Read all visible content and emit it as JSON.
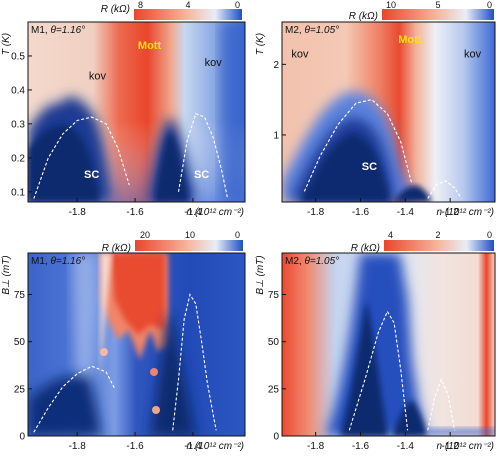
{
  "figure": {
    "panels": [
      {
        "id": "a",
        "sample": "M1",
        "theta_label": "θ=1.16°",
        "type": "heatmap",
        "colorbar_label": "R (kΩ)",
        "colorbar_ticks": [
          "8",
          "4",
          "0"
        ],
        "ylabel": "T (K)",
        "ytick_labels": [
          "0.1",
          "0.2",
          "0.3",
          "0.4",
          "0.5"
        ],
        "yticks": [
          0.1,
          0.2,
          0.3,
          0.4,
          0.5
        ],
        "ylim": [
          0.07,
          0.6
        ],
        "xlabel": "n (10¹² cm⁻²)",
        "xtick_labels": [
          "-1.8",
          "-1.6",
          "-1.4"
        ],
        "xticks": [
          -1.8,
          -1.6,
          -1.4
        ],
        "xlim": [
          -1.97,
          -1.22
        ],
        "annotations": [
          {
            "text": "kov",
            "x": -1.73,
            "y": 0.43,
            "color": "#111111"
          },
          {
            "text": "Mott",
            "x": -1.55,
            "y": 0.52,
            "color": "#ffe300"
          },
          {
            "text": "kov",
            "x": -1.33,
            "y": 0.47,
            "color": "#111111"
          },
          {
            "text": "SC",
            "x": -1.75,
            "y": 0.14,
            "color": "#ffffff"
          },
          {
            "text": "SC",
            "x": -1.37,
            "y": 0.14,
            "color": "#ffffff"
          }
        ]
      },
      {
        "id": "b",
        "sample": "M2",
        "theta_label": "θ=1.05°",
        "type": "heatmap",
        "colorbar_label": "R (kΩ)",
        "colorbar_ticks": [
          "10",
          "5",
          "0"
        ],
        "ylabel": "T (K)",
        "ytick_labels": [
          "1",
          "2"
        ],
        "yticks": [
          1,
          2
        ],
        "ylim": [
          0.05,
          2.6
        ],
        "xlabel": "n (10¹² cm⁻²)",
        "xtick_labels": [
          "-1.8",
          "-1.6",
          "-1.4",
          "-1.2"
        ],
        "xticks": [
          -1.8,
          -1.6,
          -1.4,
          -1.2
        ],
        "xlim": [
          -1.95,
          -1.0
        ],
        "annotations": [
          {
            "text": "kov",
            "x": -1.87,
            "y": 2.1,
            "color": "#111111"
          },
          {
            "text": "Mott",
            "x": -1.38,
            "y": 2.3,
            "color": "#ffe300"
          },
          {
            "text": "kov",
            "x": -1.1,
            "y": 2.1,
            "color": "#111111"
          },
          {
            "text": "SC",
            "x": -1.56,
            "y": 0.5,
            "color": "#ffffff"
          }
        ]
      },
      {
        "id": "c",
        "sample": "M1",
        "theta_label": "θ=1.16°",
        "type": "heatmap",
        "colorbar_label": "R (kΩ)",
        "colorbar_ticks": [
          "20",
          "10",
          "0"
        ],
        "ylabel": "B⊥ (mT)",
        "ytick_labels": [
          "0",
          "25",
          "50",
          "75"
        ],
        "yticks": [
          0,
          25,
          50,
          75
        ],
        "ylim": [
          0,
          97
        ],
        "xlabel": "n (10¹² cm⁻²)",
        "xtick_labels": [
          "-1.8",
          "-1.6",
          "-1.4"
        ],
        "xticks": [
          -1.8,
          -1.6,
          -1.4
        ],
        "xlim": [
          -1.97,
          -1.22
        ],
        "annotations": []
      },
      {
        "id": "d",
        "sample": "M2",
        "theta_label": "θ=1.05°",
        "type": "heatmap",
        "colorbar_label": "R (kΩ)",
        "colorbar_ticks": [
          "4",
          "2",
          "0"
        ],
        "ylabel": "B⊥ (mT)",
        "ytick_labels": [
          "0",
          "25",
          "50",
          "75"
        ],
        "yticks": [
          0,
          25,
          50,
          75
        ],
        "ylim": [
          0,
          97
        ],
        "xlabel": "n (10¹² cm⁻²)",
        "xtick_labels": [
          "-1.8",
          "-1.6",
          "-1.4",
          "-1.2"
        ],
        "xticks": [
          -1.8,
          -1.6,
          -1.4,
          -1.2
        ],
        "xlim": [
          -1.95,
          -1.0
        ],
        "annotations": []
      }
    ]
  },
  "chart_data": [
    {
      "type": "heatmap",
      "panel": "M1, θ=1.16°",
      "x_quantity": "n (10¹² cm⁻²)",
      "y_quantity": "T (K)",
      "z_quantity": "R (kΩ)",
      "x_range": [
        -1.97,
        -1.22
      ],
      "y_range": [
        0.07,
        0.6
      ],
      "z_range": [
        0,
        8
      ],
      "regions": [
        "kov",
        "Mott",
        "kov",
        "SC",
        "SC"
      ],
      "sc_dome_boundaries": [
        {
          "x": [
            -1.95,
            -1.9,
            -1.85,
            -1.8,
            -1.75,
            -1.7,
            -1.66,
            -1.62
          ],
          "y": [
            0.08,
            0.2,
            0.27,
            0.31,
            0.32,
            0.3,
            0.23,
            0.12
          ]
        },
        {
          "x": [
            -1.45,
            -1.42,
            -1.39,
            -1.36,
            -1.33,
            -1.3,
            -1.28
          ],
          "y": [
            0.1,
            0.25,
            0.33,
            0.32,
            0.26,
            0.16,
            0.08
          ]
        }
      ]
    },
    {
      "type": "heatmap",
      "panel": "M2, θ=1.05°",
      "x_quantity": "n (10¹² cm⁻²)",
      "y_quantity": "T (K)",
      "z_quantity": "R (kΩ)",
      "x_range": [
        -1.95,
        -1.0
      ],
      "y_range": [
        0.05,
        2.6
      ],
      "z_range": [
        0,
        10
      ],
      "regions": [
        "kov",
        "Mott",
        "kov",
        "SC"
      ],
      "sc_dome_boundaries": [
        {
          "x": [
            -1.85,
            -1.78,
            -1.7,
            -1.62,
            -1.55,
            -1.48,
            -1.42,
            -1.37
          ],
          "y": [
            0.2,
            0.7,
            1.15,
            1.45,
            1.5,
            1.3,
            0.9,
            0.3
          ]
        },
        {
          "x": [
            -1.3,
            -1.26,
            -1.22,
            -1.18,
            -1.15
          ],
          "y": [
            0.1,
            0.3,
            0.35,
            0.25,
            0.1
          ]
        }
      ]
    },
    {
      "type": "heatmap",
      "panel": "M1, θ=1.16°",
      "x_quantity": "n (10¹² cm⁻²)",
      "y_quantity": "B⊥ (mT)",
      "z_quantity": "R (kΩ)",
      "x_range": [
        -1.97,
        -1.22
      ],
      "y_range": [
        0,
        97
      ],
      "z_range": [
        0,
        20
      ],
      "sc_dome_boundaries": [
        {
          "x": [
            -1.95,
            -1.9,
            -1.85,
            -1.8,
            -1.75,
            -1.7,
            -1.67
          ],
          "y": [
            2,
            15,
            26,
            33,
            37,
            34,
            25
          ]
        },
        {
          "x": [
            -1.47,
            -1.45,
            -1.43,
            -1.41,
            -1.39,
            -1.37,
            -1.35,
            -1.32
          ],
          "y": [
            3,
            30,
            62,
            75,
            70,
            50,
            28,
            3
          ]
        }
      ]
    },
    {
      "type": "heatmap",
      "panel": "M2, θ=1.05°",
      "x_quantity": "n (10¹² cm⁻²)",
      "y_quantity": "B⊥ (mT)",
      "z_quantity": "R (kΩ)",
      "x_range": [
        -1.95,
        -1.0
      ],
      "y_range": [
        0,
        97
      ],
      "z_range": [
        0,
        4
      ],
      "sc_dome_boundaries": [
        {
          "x": [
            -1.65,
            -1.58,
            -1.52,
            -1.48,
            -1.45,
            -1.42,
            -1.39
          ],
          "y": [
            3,
            30,
            55,
            66,
            60,
            35,
            3
          ]
        },
        {
          "x": [
            -1.3,
            -1.27,
            -1.24,
            -1.21,
            -1.18
          ],
          "y": [
            3,
            20,
            30,
            22,
            3
          ]
        }
      ]
    }
  ]
}
